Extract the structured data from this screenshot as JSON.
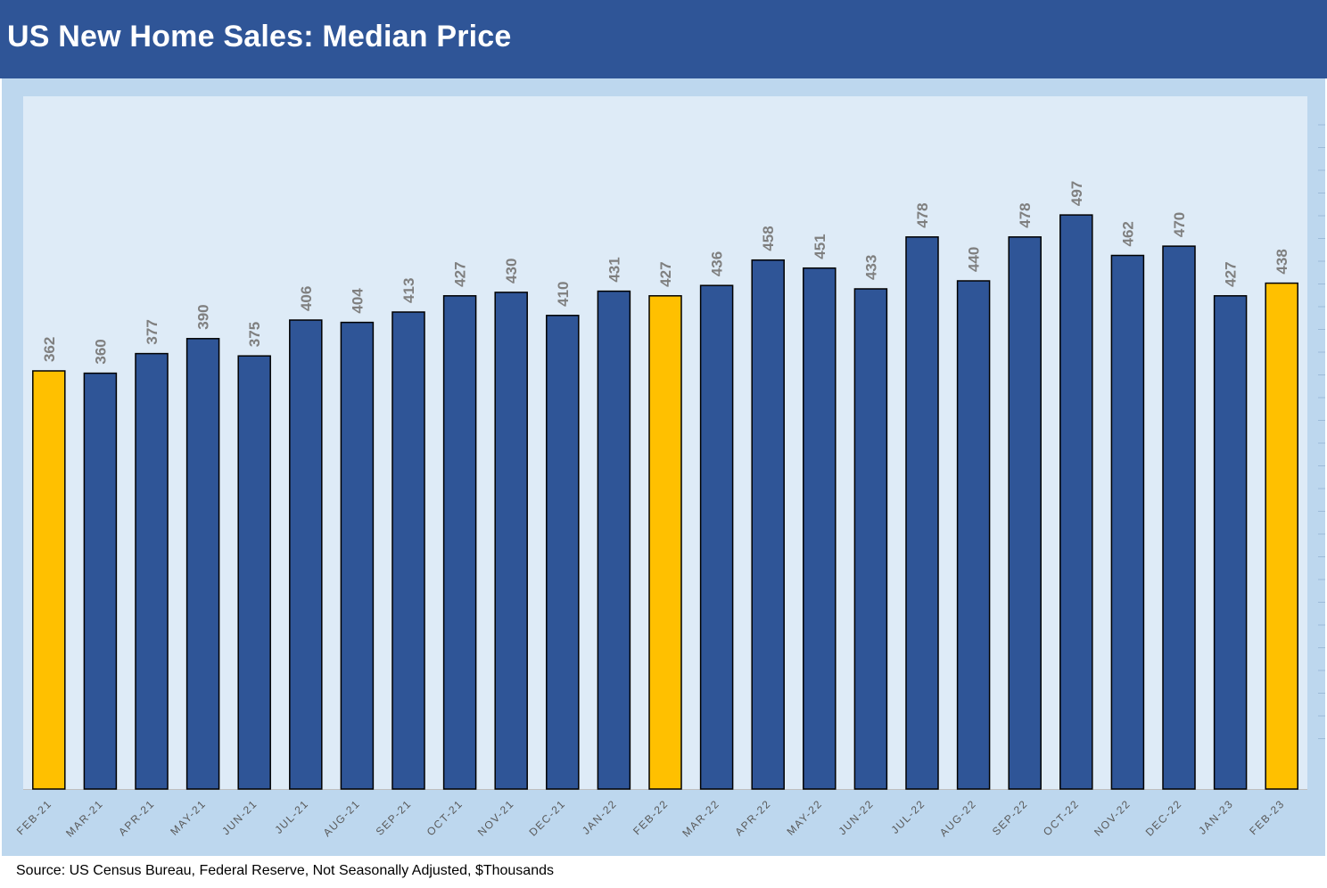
{
  "header": {
    "title": "US New Home Sales: Median Price"
  },
  "footer": {
    "source": "Source: US Census Bureau, Federal Reserve, Not Seasonally Adjusted, $Thousands"
  },
  "colors": {
    "header_bg": "#2f5597",
    "bar_default": "#2f5597",
    "bar_highlight": "#ffc000",
    "frame_bg": "#bdd7ee",
    "plot_bg": "#deebf7",
    "label_text": "#7f7f7f",
    "axis_text": "#595959"
  },
  "chart_data": {
    "type": "bar",
    "title": "US New Home Sales: Median Price",
    "xlabel": "",
    "ylabel": "",
    "ylim": [
      0,
      530
    ],
    "grid": false,
    "legend": "none",
    "categories": [
      "FEB-21",
      "MAR-21",
      "APR-21",
      "MAY-21",
      "JUN-21",
      "JUL-21",
      "AUG-21",
      "SEP-21",
      "OCT-21",
      "NOV-21",
      "DEC-21",
      "JAN-22",
      "FEB-22",
      "MAR-22",
      "APR-22",
      "MAY-22",
      "JUN-22",
      "JUL-22",
      "AUG-22",
      "SEP-22",
      "OCT-22",
      "NOV-22",
      "DEC-22",
      "JAN-23",
      "FEB-23"
    ],
    "values": [
      362,
      360,
      377,
      390,
      375,
      406,
      404,
      413,
      427,
      430,
      410,
      431,
      427,
      436,
      458,
      451,
      433,
      478,
      440,
      478,
      497,
      462,
      470,
      427,
      438
    ],
    "highlighted": [
      "FEB-21",
      "FEB-22",
      "FEB-23"
    ],
    "data_labels": [
      "362",
      "360",
      "377",
      "390",
      "375",
      "406",
      "404",
      "413",
      "427",
      "430",
      "410",
      "431",
      "427",
      "436",
      "458",
      "451",
      "433",
      "478",
      "440",
      "478",
      "497",
      "462",
      "470",
      "427",
      "438"
    ]
  }
}
